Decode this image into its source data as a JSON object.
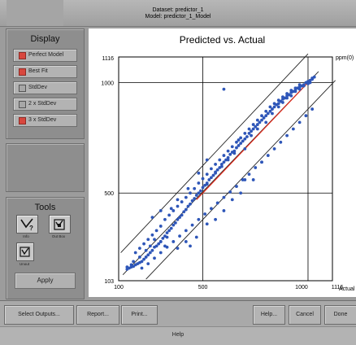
{
  "header": {
    "dataset_line": "Dataset: predictor_1",
    "model_line": "Model: predictor_1_Model"
  },
  "display": {
    "title": "Display",
    "items": [
      {
        "label": "Perfect Model",
        "on": true
      },
      {
        "label": "Best Fit",
        "on": true
      },
      {
        "label": "StdDev",
        "on": false
      },
      {
        "label": "2 x StdDev",
        "on": false
      },
      {
        "label": "3 x StdDev",
        "on": true
      }
    ]
  },
  "tools": {
    "title": "Tools",
    "info_label": "Info",
    "outbox_label": "Out Box",
    "unout_label": "Unout",
    "apply_label": "Apply"
  },
  "buttons": {
    "select_outputs": "Select Outputs...",
    "report": "Report...",
    "print": "Print...",
    "help": "Help...",
    "cancel": "Cancel",
    "done": "Done"
  },
  "status": {
    "text": "Help"
  },
  "colors": {
    "points": "#2e56b8",
    "perfect_model": "#e02a1a",
    "bands": "#222222"
  },
  "chart_data": {
    "type": "scatter",
    "title": "Predicted vs. Actual",
    "xlabel": "Actual",
    "ylabel": "ppm(0)",
    "xlim": [
      100,
      1116
    ],
    "ylim": [
      103,
      1116
    ],
    "x_ticks": [
      "100",
      "500",
      "1000",
      "1116"
    ],
    "y_ticks": [
      "103",
      "500",
      "1000",
      "1116"
    ],
    "grid_values": [
      500,
      1000
    ],
    "perfect_model_line": [
      [
        470,
        470
      ],
      [
        1030,
        1030
      ]
    ],
    "best_fit_line": [
      [
        120,
        130
      ],
      [
        1050,
        1050
      ]
    ],
    "band_upper": [
      [
        110,
        230
      ],
      [
        1000,
        1130
      ]
    ],
    "band_lower": [
      [
        230,
        110
      ],
      [
        1130,
        1010
      ]
    ],
    "points": [
      [
        140,
        155
      ],
      [
        150,
        160
      ],
      [
        160,
        165
      ],
      [
        170,
        168
      ],
      [
        180,
        175
      ],
      [
        190,
        180
      ],
      [
        200,
        185
      ],
      [
        210,
        190
      ],
      [
        220,
        200
      ],
      [
        230,
        210
      ],
      [
        240,
        220
      ],
      [
        250,
        230
      ],
      [
        260,
        240
      ],
      [
        270,
        255
      ],
      [
        280,
        260
      ],
      [
        290,
        270
      ],
      [
        300,
        280
      ],
      [
        310,
        295
      ],
      [
        320,
        305
      ],
      [
        330,
        320
      ],
      [
        340,
        330
      ],
      [
        350,
        340
      ],
      [
        360,
        355
      ],
      [
        370,
        365
      ],
      [
        380,
        380
      ],
      [
        390,
        390
      ],
      [
        400,
        400
      ],
      [
        410,
        415
      ],
      [
        420,
        425
      ],
      [
        430,
        440
      ],
      [
        440,
        450
      ],
      [
        450,
        465
      ],
      [
        460,
        475
      ],
      [
        470,
        490
      ],
      [
        480,
        500
      ],
      [
        490,
        510
      ],
      [
        500,
        525
      ],
      [
        510,
        535
      ],
      [
        520,
        545
      ],
      [
        530,
        560
      ],
      [
        540,
        570
      ],
      [
        550,
        580
      ],
      [
        560,
        595
      ],
      [
        570,
        605
      ],
      [
        580,
        615
      ],
      [
        590,
        630
      ],
      [
        600,
        640
      ],
      [
        610,
        650
      ],
      [
        620,
        660
      ],
      [
        630,
        675
      ],
      [
        640,
        685
      ],
      [
        650,
        690
      ],
      [
        660,
        705
      ],
      [
        670,
        715
      ],
      [
        680,
        725
      ],
      [
        690,
        735
      ],
      [
        700,
        745
      ],
      [
        710,
        755
      ],
      [
        720,
        770
      ],
      [
        730,
        780
      ],
      [
        740,
        790
      ],
      [
        750,
        800
      ],
      [
        760,
        810
      ],
      [
        770,
        820
      ],
      [
        780,
        830
      ],
      [
        790,
        840
      ],
      [
        800,
        850
      ],
      [
        810,
        860
      ],
      [
        820,
        870
      ],
      [
        830,
        880
      ],
      [
        840,
        890
      ],
      [
        850,
        900
      ],
      [
        860,
        905
      ],
      [
        870,
        915
      ],
      [
        880,
        925
      ],
      [
        890,
        930
      ],
      [
        900,
        940
      ],
      [
        910,
        945
      ],
      [
        920,
        955
      ],
      [
        930,
        960
      ],
      [
        940,
        965
      ],
      [
        950,
        975
      ],
      [
        960,
        980
      ],
      [
        970,
        985
      ],
      [
        980,
        990
      ],
      [
        990,
        1000
      ],
      [
        1000,
        1005
      ],
      [
        1010,
        1010
      ],
      [
        1020,
        1020
      ],
      [
        1030,
        1025
      ],
      [
        180,
        230
      ],
      [
        200,
        250
      ],
      [
        220,
        270
      ],
      [
        240,
        290
      ],
      [
        260,
        310
      ],
      [
        280,
        330
      ],
      [
        300,
        350
      ],
      [
        320,
        380
      ],
      [
        340,
        400
      ],
      [
        360,
        420
      ],
      [
        380,
        440
      ],
      [
        400,
        460
      ],
      [
        420,
        480
      ],
      [
        440,
        500
      ],
      [
        460,
        520
      ],
      [
        480,
        545
      ],
      [
        500,
        565
      ],
      [
        520,
        585
      ],
      [
        540,
        610
      ],
      [
        560,
        630
      ],
      [
        580,
        650
      ],
      [
        600,
        670
      ],
      [
        620,
        690
      ],
      [
        640,
        710
      ],
      [
        660,
        730
      ],
      [
        680,
        750
      ],
      [
        700,
        770
      ],
      [
        720,
        790
      ],
      [
        740,
        810
      ],
      [
        760,
        830
      ],
      [
        780,
        850
      ],
      [
        800,
        870
      ],
      [
        820,
        890
      ],
      [
        840,
        905
      ],
      [
        860,
        920
      ],
      [
        880,
        935
      ],
      [
        900,
        950
      ],
      [
        920,
        965
      ],
      [
        940,
        975
      ],
      [
        960,
        990
      ],
      [
        210,
        160
      ],
      [
        240,
        180
      ],
      [
        270,
        205
      ],
      [
        300,
        230
      ],
      [
        330,
        255
      ],
      [
        360,
        280
      ],
      [
        390,
        305
      ],
      [
        420,
        330
      ],
      [
        450,
        355
      ],
      [
        480,
        380
      ],
      [
        510,
        405
      ],
      [
        540,
        430
      ],
      [
        570,
        455
      ],
      [
        600,
        480
      ],
      [
        630,
        505
      ],
      [
        660,
        530
      ],
      [
        690,
        560
      ],
      [
        720,
        585
      ],
      [
        750,
        615
      ],
      [
        780,
        640
      ],
      [
        810,
        670
      ],
      [
        840,
        700
      ],
      [
        870,
        730
      ],
      [
        900,
        760
      ],
      [
        930,
        790
      ],
      [
        960,
        820
      ],
      [
        990,
        850
      ],
      [
        1020,
        880
      ],
      [
        260,
        390
      ],
      [
        300,
        420
      ],
      [
        320,
        260
      ],
      [
        380,
        250
      ],
      [
        420,
        280
      ],
      [
        440,
        260
      ],
      [
        470,
        300
      ],
      [
        520,
        360
      ],
      [
        560,
        380
      ],
      [
        600,
        420
      ],
      [
        640,
        470
      ],
      [
        680,
        500
      ],
      [
        700,
        560
      ],
      [
        740,
        560
      ],
      [
        780,
        640
      ],
      [
        600,
        970
      ],
      [
        670,
        740
      ],
      [
        520,
        650
      ],
      [
        480,
        590
      ],
      [
        430,
        520
      ],
      [
        380,
        470
      ],
      [
        350,
        430
      ],
      [
        330,
        300
      ],
      [
        300,
        280
      ],
      [
        270,
        290
      ],
      [
        250,
        260
      ],
      [
        230,
        240
      ],
      [
        200,
        210
      ],
      [
        170,
        190
      ],
      [
        160,
        175
      ],
      [
        140,
        165
      ],
      [
        520,
        540
      ],
      [
        560,
        590
      ],
      [
        590,
        620
      ],
      [
        620,
        650
      ],
      [
        650,
        680
      ],
      [
        700,
        700
      ],
      [
        730,
        760
      ],
      [
        760,
        790
      ],
      [
        800,
        820
      ],
      [
        830,
        860
      ],
      [
        860,
        890
      ],
      [
        880,
        910
      ],
      [
        900,
        930
      ],
      [
        920,
        940
      ],
      [
        940,
        960
      ],
      [
        960,
        970
      ],
      [
        980,
        985
      ],
      [
        1000,
        995
      ],
      [
        1010,
        1000
      ],
      [
        1020,
        1015
      ]
    ]
  }
}
